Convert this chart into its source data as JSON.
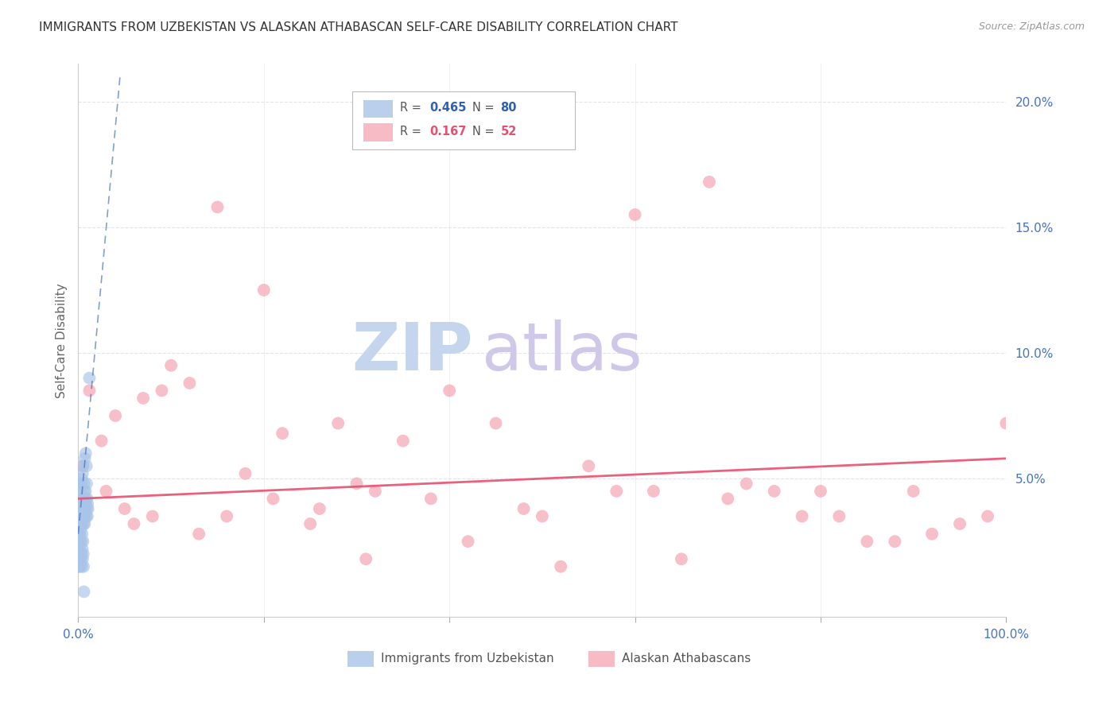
{
  "title": "IMMIGRANTS FROM UZBEKISTAN VS ALASKAN ATHABASCAN SELF-CARE DISABILITY CORRELATION CHART",
  "source": "Source: ZipAtlas.com",
  "ylabel": "Self-Care Disability",
  "xlim": [
    0.0,
    100.0
  ],
  "ylim": [
    -0.5,
    21.5
  ],
  "legend_blue_r": "0.465",
  "legend_blue_n": "80",
  "legend_pink_r": "0.167",
  "legend_pink_n": "52",
  "blue_color": "#a8c4e8",
  "pink_color": "#f5aab8",
  "blue_line_color": "#3060b0",
  "pink_line_color": "#e85070",
  "title_color": "#333333",
  "axis_label_color": "#666666",
  "tick_color": "#4472c4",
  "grid_color": "#e0e0e8",
  "watermark_zip_color": "#c5d5ee",
  "watermark_atlas_color": "#d0c8e8",
  "blue_scatter_x": [
    0.05,
    0.08,
    0.1,
    0.12,
    0.15,
    0.18,
    0.2,
    0.22,
    0.25,
    0.28,
    0.3,
    0.32,
    0.35,
    0.38,
    0.4,
    0.42,
    0.45,
    0.48,
    0.5,
    0.52,
    0.55,
    0.58,
    0.6,
    0.62,
    0.65,
    0.68,
    0.7,
    0.72,
    0.75,
    0.78,
    0.8,
    0.82,
    0.85,
    0.88,
    0.9,
    0.92,
    0.95,
    0.98,
    1.0,
    1.05,
    0.03,
    0.06,
    0.09,
    0.13,
    0.16,
    0.19,
    0.23,
    0.26,
    0.29,
    0.33,
    0.36,
    0.39,
    0.43,
    0.46,
    0.49,
    0.53,
    0.56,
    0.59,
    0.63,
    0.66,
    0.03,
    0.04,
    0.07,
    0.11,
    0.14,
    0.17,
    0.21,
    0.24,
    0.27,
    0.31,
    0.34,
    0.37,
    0.41,
    0.44,
    0.47,
    0.51,
    0.54,
    0.57,
    0.61,
    1.2
  ],
  "blue_scatter_y": [
    3.2,
    2.8,
    4.8,
    3.5,
    3.0,
    4.2,
    4.5,
    3.8,
    4.0,
    3.5,
    4.8,
    3.2,
    5.0,
    3.8,
    4.2,
    3.5,
    5.2,
    4.0,
    5.5,
    3.8,
    4.0,
    3.5,
    4.8,
    3.8,
    4.5,
    3.2,
    5.8,
    4.2,
    3.8,
    4.5,
    6.0,
    4.0,
    3.5,
    5.5,
    4.8,
    3.8,
    4.2,
    3.5,
    4.0,
    3.8,
    2.5,
    3.0,
    2.8,
    3.5,
    3.2,
    2.8,
    3.5,
    3.0,
    3.8,
    3.5,
    3.2,
    3.8,
    3.5,
    4.0,
    3.8,
    3.5,
    3.2,
    3.8,
    4.0,
    3.5,
    2.0,
    1.5,
    2.5,
    1.8,
    2.2,
    1.5,
    2.5,
    2.0,
    1.8,
    2.5,
    2.0,
    1.5,
    2.8,
    2.2,
    1.8,
    2.5,
    2.0,
    1.5,
    0.5,
    9.0
  ],
  "pink_scatter_x": [
    0.5,
    1.2,
    2.5,
    4.0,
    5.0,
    7.0,
    8.0,
    10.0,
    12.0,
    15.0,
    18.0,
    20.0,
    22.0,
    25.0,
    28.0,
    30.0,
    32.0,
    35.0,
    38.0,
    40.0,
    42.0,
    45.0,
    48.0,
    50.0,
    52.0,
    55.0,
    58.0,
    60.0,
    62.0,
    65.0,
    68.0,
    70.0,
    72.0,
    75.0,
    78.0,
    80.0,
    82.0,
    85.0,
    88.0,
    90.0,
    92.0,
    95.0,
    98.0,
    100.0,
    3.0,
    6.0,
    9.0,
    13.0,
    16.0,
    21.0,
    26.0,
    31.0
  ],
  "pink_scatter_y": [
    5.5,
    8.5,
    6.5,
    7.5,
    3.8,
    8.2,
    3.5,
    9.5,
    8.8,
    15.8,
    5.2,
    12.5,
    6.8,
    3.2,
    7.2,
    4.8,
    4.5,
    6.5,
    4.2,
    8.5,
    2.5,
    7.2,
    3.8,
    3.5,
    1.5,
    5.5,
    4.5,
    15.5,
    4.5,
    1.8,
    16.8,
    4.2,
    4.8,
    4.5,
    3.5,
    4.5,
    3.5,
    2.5,
    2.5,
    4.5,
    2.8,
    3.2,
    3.5,
    7.2,
    4.5,
    3.2,
    8.5,
    2.8,
    3.5,
    4.2,
    3.8,
    1.8
  ],
  "blue_trend_x0": 0.0,
  "blue_trend_y0": 2.8,
  "blue_trend_x1": 4.5,
  "blue_trend_y1": 21.0,
  "pink_trend_x0": 0.0,
  "pink_trend_y0": 4.2,
  "pink_trend_x1": 100.0,
  "pink_trend_y1": 5.8
}
